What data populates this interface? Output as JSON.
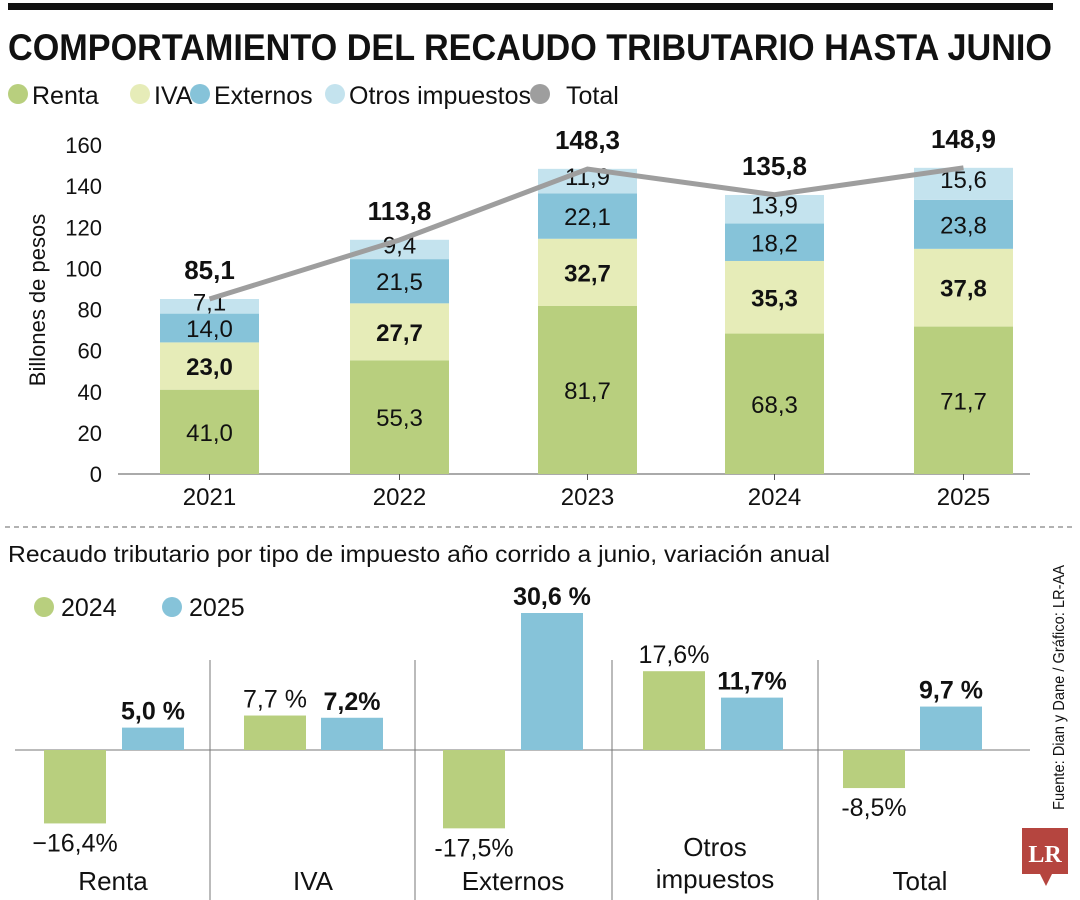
{
  "title": "COMPORTAMIENTO DEL RECAUDO TRIBUTARIO HASTA JUNIO",
  "source": "Fuente:  Dian y Dane / Gráfico: LR-AA",
  "logo": "LR",
  "colors": {
    "renta": "#b8cf7e",
    "iva": "#e6ecb8",
    "externos": "#86c3d9",
    "otros": "#c4e3ee",
    "total": "#9e9e9e",
    "logo": "#b5453f"
  },
  "chart_data": [
    {
      "type": "bar",
      "stacked": true,
      "ylabel": "Billones de pesos",
      "ylim": [
        0,
        160
      ],
      "yticks": [
        0,
        20,
        40,
        60,
        80,
        100,
        120,
        140,
        160
      ],
      "categories": [
        "2021",
        "2022",
        "2023",
        "2024",
        "2025"
      ],
      "legend": [
        "Renta",
        "IVA",
        "Externos",
        "Otros impuestos",
        "Total"
      ],
      "legend_position": "top",
      "series": [
        {
          "name": "Renta",
          "values": [
            41.0,
            55.3,
            81.7,
            68.3,
            71.7
          ],
          "labels": [
            "41,0",
            "55,3",
            "81,7",
            "68,3",
            "71,7"
          ]
        },
        {
          "name": "IVA",
          "values": [
            23.0,
            27.7,
            32.7,
            35.3,
            37.8
          ],
          "labels": [
            "23,0",
            "27,7",
            "32,7",
            "35,3",
            "37,8"
          ]
        },
        {
          "name": "Externos",
          "values": [
            14.0,
            21.5,
            22.1,
            18.2,
            23.8
          ],
          "labels": [
            "14,0",
            "21,5",
            "22,1",
            "18,2",
            "23,8"
          ]
        },
        {
          "name": "Otros impuestos",
          "values": [
            7.1,
            9.4,
            11.9,
            13.9,
            15.6
          ],
          "labels": [
            "7,1",
            "9,4",
            "11,9",
            "13,9",
            "15,6"
          ]
        }
      ],
      "total": {
        "name": "Total",
        "type": "line",
        "values": [
          85.1,
          113.8,
          148.3,
          135.8,
          148.9
        ],
        "labels": [
          "85,1",
          "113,8",
          "148,3",
          "135,8",
          "148,9"
        ]
      }
    },
    {
      "type": "bar",
      "title": "Recaudo tributario por tipo de impuesto año corrido a junio, variación anual",
      "categories": [
        "Renta",
        "IVA",
        "Externos",
        "Otros impuestos",
        "Total"
      ],
      "legend_position": "top-left",
      "series": [
        {
          "name": "2024",
          "values": [
            -16.4,
            7.7,
            -17.5,
            17.6,
            -8.5
          ],
          "labels": [
            "−16,4%",
            "7,7  %",
            "-17,5%",
            "17,6%",
            "-8,5%"
          ]
        },
        {
          "name": "2025",
          "values": [
            5.0,
            7.2,
            30.6,
            11.7,
            9.7
          ],
          "labels": [
            "5,0 %",
            "7,2%",
            "30,6  %",
            "11,7%",
            "9,7  %"
          ]
        }
      ]
    }
  ]
}
